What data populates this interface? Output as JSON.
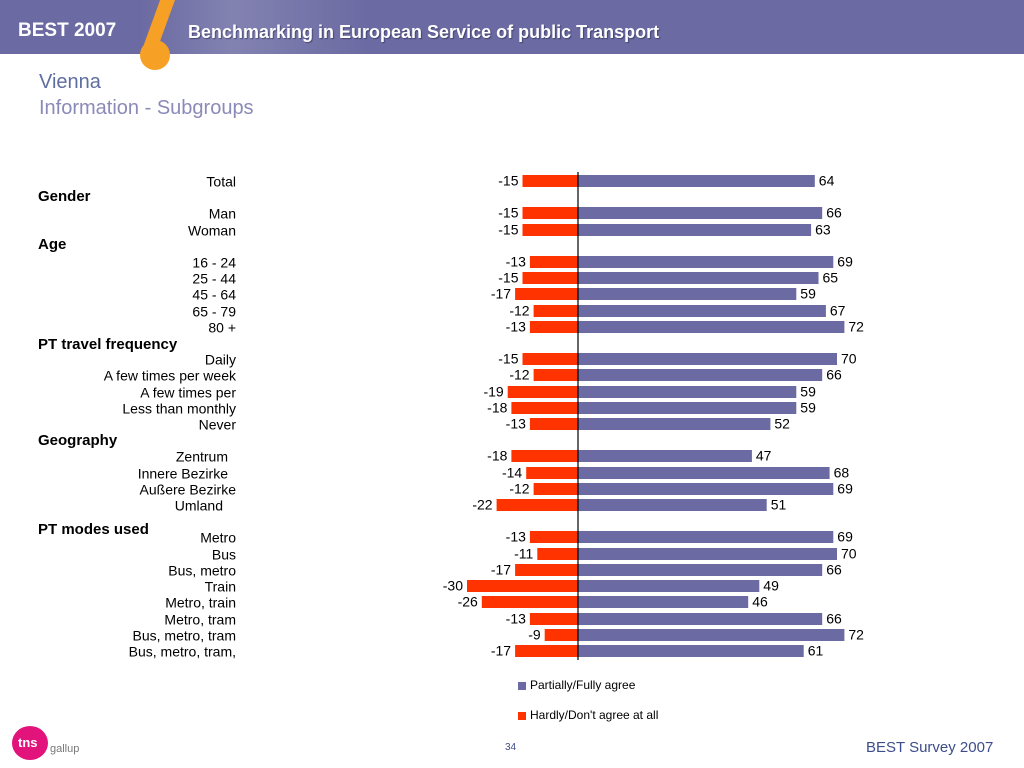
{
  "header": {
    "brand": "BEST 2007",
    "title": "Benchmarking in European Service of public Transport"
  },
  "slide": {
    "title": "Vienna",
    "subtitle": "Information - Subgroups"
  },
  "footer": {
    "logo": "tns",
    "company": "gallup",
    "page_number": "34",
    "source": "BEST Survey 2007"
  },
  "colors": {
    "header_bg": "#6b6aa2",
    "agree": "#6b6aa2",
    "disagree": "#ff3300",
    "title": "#5e6ea0"
  },
  "chart_data": {
    "type": "bar",
    "orientation": "horizontal-diverging",
    "legend_position": "bottom",
    "legend": [
      "Partially/Fully agree",
      "Hardly/Don't agree at all"
    ],
    "groups": [
      "Gender",
      "Age",
      "PT travel frequency",
      "Geography",
      "PT modes used"
    ],
    "categories": [
      "Total",
      "Man",
      "Woman",
      "16 - 24",
      "25 - 44",
      "45 - 64",
      "65 - 79",
      "80 +",
      "Daily",
      "A few times per week",
      "A few times per",
      "Less than monthly",
      "Never",
      "Zentrum",
      "Innere Bezirke",
      "Außere Bezirke",
      "Umland",
      "Metro",
      "Bus",
      "Bus, metro",
      "Train",
      "Metro, train",
      "Metro, tram",
      "Bus, metro, tram",
      "Bus, metro, tram,"
    ],
    "series": [
      {
        "name": "Partially/Fully agree",
        "values": [
          64,
          66,
          63,
          69,
          65,
          59,
          67,
          72,
          70,
          66,
          59,
          59,
          52,
          47,
          68,
          69,
          51,
          69,
          70,
          66,
          49,
          46,
          66,
          72,
          61
        ]
      },
      {
        "name": "Hardly/Don't agree at all",
        "values": [
          -15,
          -15,
          -15,
          -13,
          -15,
          -17,
          -12,
          -13,
          -15,
          -12,
          -19,
          -18,
          -13,
          -18,
          -14,
          -12,
          -22,
          -13,
          -11,
          -17,
          -30,
          -26,
          -13,
          -9,
          -17
        ]
      }
    ]
  }
}
